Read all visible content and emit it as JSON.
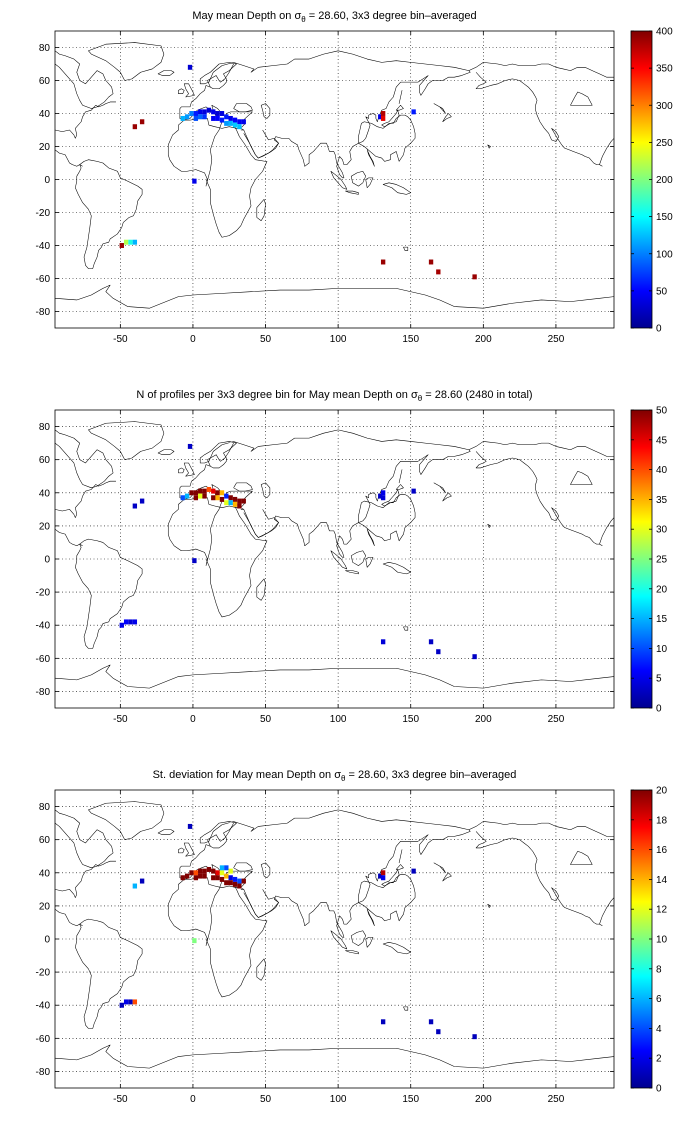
{
  "colors": {
    "land_outline": "#000000",
    "grid": "#000000",
    "background": "#ffffff",
    "colormap": "jet"
  },
  "chart_data": [
    {
      "type": "heatmap",
      "title": "May mean Depth on σθ = 28.60, 3x3 degree bin–averaged",
      "title_parts": [
        "May mean Depth on σ",
        "θ",
        " = 28.60, 3x3 degree bin–averaged"
      ],
      "xlim": [
        -95,
        290
      ],
      "ylim": [
        -90,
        90
      ],
      "xticks": [
        -50,
        0,
        50,
        100,
        150,
        200,
        250
      ],
      "yticks": [
        -80,
        -60,
        -40,
        -20,
        0,
        20,
        40,
        60,
        80
      ],
      "grid": true,
      "colorbar": {
        "min": 0,
        "max": 400,
        "ticks": [
          0,
          50,
          100,
          150,
          200,
          250,
          300,
          350,
          400
        ]
      },
      "bins": [
        {
          "x": -2,
          "y": 68,
          "v": 30
        },
        {
          "x": 1,
          "y": -1,
          "v": 40
        },
        {
          "x": -40,
          "y": 32,
          "v": 390
        },
        {
          "x": -35,
          "y": 35,
          "v": 390
        },
        {
          "x": -7,
          "y": 37,
          "v": 120
        },
        {
          "x": -4,
          "y": 38,
          "v": 110
        },
        {
          "x": -1,
          "y": 40,
          "v": 100
        },
        {
          "x": 2,
          "y": 40,
          "v": 60
        },
        {
          "x": 5,
          "y": 41,
          "v": 40
        },
        {
          "x": 8,
          "y": 41,
          "v": 35
        },
        {
          "x": 11,
          "y": 42,
          "v": 30
        },
        {
          "x": 14,
          "y": 41,
          "v": 40
        },
        {
          "x": 17,
          "y": 40,
          "v": 30
        },
        {
          "x": 20,
          "y": 40,
          "v": 35
        },
        {
          "x": 23,
          "y": 38,
          "v": 60
        },
        {
          "x": 26,
          "y": 37,
          "v": 40
        },
        {
          "x": 29,
          "y": 36,
          "v": 50
        },
        {
          "x": 32,
          "y": 35,
          "v": 45
        },
        {
          "x": 35,
          "y": 35,
          "v": 40
        },
        {
          "x": 2,
          "y": 37,
          "v": 80
        },
        {
          "x": 5,
          "y": 38,
          "v": 90
        },
        {
          "x": 8,
          "y": 38,
          "v": 70
        },
        {
          "x": 14,
          "y": 37,
          "v": 45
        },
        {
          "x": 17,
          "y": 37,
          "v": 50
        },
        {
          "x": 20,
          "y": 36,
          "v": 60
        },
        {
          "x": 23,
          "y": 34,
          "v": 110
        },
        {
          "x": 26,
          "y": 34,
          "v": 120
        },
        {
          "x": 29,
          "y": 33,
          "v": 130
        },
        {
          "x": 32,
          "y": 32,
          "v": 125
        },
        {
          "x": 129,
          "y": 38,
          "v": 40
        },
        {
          "x": 131,
          "y": 40,
          "v": 380
        },
        {
          "x": 131,
          "y": 37,
          "v": 360
        },
        {
          "x": 152,
          "y": 41,
          "v": 60
        },
        {
          "x": -49,
          "y": -40,
          "v": 390
        },
        {
          "x": -46,
          "y": -38,
          "v": 220
        },
        {
          "x": -43,
          "y": -38,
          "v": 160
        },
        {
          "x": -40,
          "y": -38,
          "v": 120
        },
        {
          "x": 131,
          "y": -50,
          "v": 390
        },
        {
          "x": 164,
          "y": -50,
          "v": 390
        },
        {
          "x": 169,
          "y": -56,
          "v": 385
        },
        {
          "x": 194,
          "y": -59,
          "v": 390
        }
      ]
    },
    {
      "type": "heatmap",
      "title": "N of profiles per 3x3 degree bin for May mean Depth on σθ = 28.60 (2480 in total)",
      "title_parts": [
        "N of profiles per 3x3 degree bin for May mean Depth on σ",
        "θ",
        " = 28.60 (2480 in total)"
      ],
      "xlim": [
        -95,
        290
      ],
      "ylim": [
        -90,
        90
      ],
      "xticks": [
        -50,
        0,
        50,
        100,
        150,
        200,
        250
      ],
      "yticks": [
        -80,
        -60,
        -40,
        -20,
        0,
        20,
        40,
        60,
        80
      ],
      "grid": true,
      "colorbar": {
        "min": 0,
        "max": 50,
        "ticks": [
          0,
          5,
          10,
          15,
          20,
          25,
          30,
          35,
          40,
          45,
          50
        ]
      },
      "bins": [
        {
          "x": -2,
          "y": 68,
          "v": 3
        },
        {
          "x": 1,
          "y": -1,
          "v": 3
        },
        {
          "x": -40,
          "y": 32,
          "v": 3
        },
        {
          "x": -35,
          "y": 35,
          "v": 3
        },
        {
          "x": -7,
          "y": 37,
          "v": 10
        },
        {
          "x": -4,
          "y": 38,
          "v": 15
        },
        {
          "x": -1,
          "y": 40,
          "v": 50
        },
        {
          "x": 2,
          "y": 40,
          "v": 50
        },
        {
          "x": 5,
          "y": 41,
          "v": 50
        },
        {
          "x": 8,
          "y": 41,
          "v": 50
        },
        {
          "x": 11,
          "y": 42,
          "v": 40
        },
        {
          "x": 14,
          "y": 41,
          "v": 45
        },
        {
          "x": 17,
          "y": 40,
          "v": 50
        },
        {
          "x": 20,
          "y": 40,
          "v": 35
        },
        {
          "x": 23,
          "y": 38,
          "v": 8
        },
        {
          "x": 26,
          "y": 37,
          "v": 50
        },
        {
          "x": 29,
          "y": 36,
          "v": 50
        },
        {
          "x": 32,
          "y": 35,
          "v": 50
        },
        {
          "x": 35,
          "y": 35,
          "v": 50
        },
        {
          "x": 2,
          "y": 37,
          "v": 50
        },
        {
          "x": 5,
          "y": 38,
          "v": 30
        },
        {
          "x": 8,
          "y": 38,
          "v": 50
        },
        {
          "x": 14,
          "y": 37,
          "v": 50
        },
        {
          "x": 17,
          "y": 37,
          "v": 35
        },
        {
          "x": 20,
          "y": 36,
          "v": 50
        },
        {
          "x": 23,
          "y": 34,
          "v": 30
        },
        {
          "x": 26,
          "y": 34,
          "v": 15
        },
        {
          "x": 29,
          "y": 33,
          "v": 35
        },
        {
          "x": 32,
          "y": 32,
          "v": 50
        },
        {
          "x": 129,
          "y": 38,
          "v": 3
        },
        {
          "x": 131,
          "y": 40,
          "v": 5
        },
        {
          "x": 131,
          "y": 37,
          "v": 4
        },
        {
          "x": 152,
          "y": 41,
          "v": 3
        },
        {
          "x": -49,
          "y": -40,
          "v": 5
        },
        {
          "x": -46,
          "y": -38,
          "v": 6
        },
        {
          "x": -43,
          "y": -38,
          "v": 4
        },
        {
          "x": -40,
          "y": -38,
          "v": 5
        },
        {
          "x": 131,
          "y": -50,
          "v": 4
        },
        {
          "x": 164,
          "y": -50,
          "v": 3
        },
        {
          "x": 169,
          "y": -56,
          "v": 3
        },
        {
          "x": 194,
          "y": -59,
          "v": 3
        }
      ]
    },
    {
      "type": "heatmap",
      "title": "St. deviation for May mean Depth on σθ = 28.60, 3x3 degree bin–averaged",
      "title_parts": [
        "St. deviation for May mean Depth on σ",
        "θ",
        " = 28.60, 3x3 degree bin–averaged"
      ],
      "xlim": [
        -95,
        290
      ],
      "ylim": [
        -90,
        90
      ],
      "xticks": [
        -50,
        0,
        50,
        100,
        150,
        200,
        250
      ],
      "yticks": [
        -80,
        -60,
        -40,
        -20,
        0,
        20,
        40,
        60,
        80
      ],
      "grid": true,
      "colorbar": {
        "min": 0,
        "max": 20,
        "ticks": [
          0,
          2,
          4,
          6,
          8,
          10,
          12,
          14,
          16,
          18,
          20
        ]
      },
      "bins": [
        {
          "x": -2,
          "y": 68,
          "v": 1
        },
        {
          "x": 1,
          "y": -1,
          "v": 10
        },
        {
          "x": -40,
          "y": 32,
          "v": 6
        },
        {
          "x": -35,
          "y": 35,
          "v": 1
        },
        {
          "x": -7,
          "y": 37,
          "v": 20
        },
        {
          "x": -4,
          "y": 38,
          "v": 20
        },
        {
          "x": -1,
          "y": 40,
          "v": 20
        },
        {
          "x": 2,
          "y": 40,
          "v": 16
        },
        {
          "x": 5,
          "y": 41,
          "v": 20
        },
        {
          "x": 8,
          "y": 41,
          "v": 20
        },
        {
          "x": 11,
          "y": 42,
          "v": 20
        },
        {
          "x": 14,
          "y": 41,
          "v": 20
        },
        {
          "x": 17,
          "y": 40,
          "v": 18
        },
        {
          "x": 20,
          "y": 40,
          "v": 12
        },
        {
          "x": 23,
          "y": 38,
          "v": 14
        },
        {
          "x": 26,
          "y": 37,
          "v": 2
        },
        {
          "x": 29,
          "y": 36,
          "v": 3
        },
        {
          "x": 32,
          "y": 35,
          "v": 4
        },
        {
          "x": 35,
          "y": 35,
          "v": 20
        },
        {
          "x": 2,
          "y": 37,
          "v": 20
        },
        {
          "x": 5,
          "y": 38,
          "v": 20
        },
        {
          "x": 8,
          "y": 38,
          "v": 20
        },
        {
          "x": 14,
          "y": 37,
          "v": 20
        },
        {
          "x": 17,
          "y": 37,
          "v": 20
        },
        {
          "x": 20,
          "y": 36,
          "v": 20
        },
        {
          "x": 23,
          "y": 34,
          "v": 20
        },
        {
          "x": 26,
          "y": 34,
          "v": 20
        },
        {
          "x": 29,
          "y": 33,
          "v": 20
        },
        {
          "x": 32,
          "y": 32,
          "v": 20
        },
        {
          "x": 20,
          "y": 43,
          "v": 6
        },
        {
          "x": 23,
          "y": 43,
          "v": 4
        },
        {
          "x": 26,
          "y": 41,
          "v": 12
        },
        {
          "x": 129,
          "y": 38,
          "v": 1
        },
        {
          "x": 131,
          "y": 40,
          "v": 19
        },
        {
          "x": 131,
          "y": 37,
          "v": 2
        },
        {
          "x": 152,
          "y": 41,
          "v": 1
        },
        {
          "x": -49,
          "y": -40,
          "v": 1
        },
        {
          "x": -46,
          "y": -38,
          "v": 2
        },
        {
          "x": -43,
          "y": -38,
          "v": 1
        },
        {
          "x": -40,
          "y": -38,
          "v": 16
        },
        {
          "x": 131,
          "y": -50,
          "v": 1
        },
        {
          "x": 164,
          "y": -50,
          "v": 1
        },
        {
          "x": 169,
          "y": -56,
          "v": 1
        },
        {
          "x": 194,
          "y": -59,
          "v": 1
        }
      ]
    }
  ]
}
